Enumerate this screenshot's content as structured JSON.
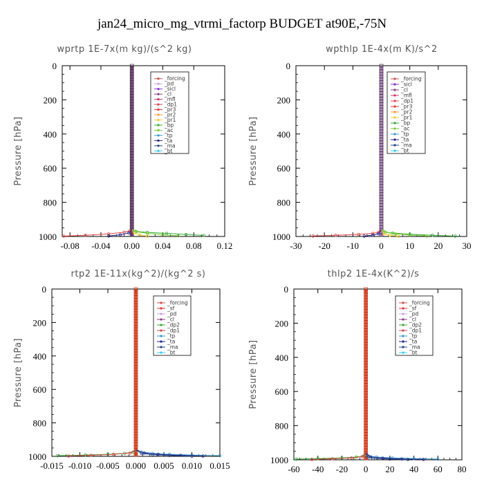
{
  "title": "jan24_micro_mg_vtrmi_factorp  BUDGET at90E,-75N",
  "colors": {
    "_forcing": "#d04c4c",
    "_pd": "#c9a0dc",
    "_sicl": "#8a2be2",
    "_cl": "#8b3a8b",
    "_mfl": "#cc3366",
    "_dp1": "#dd4444",
    "_pr3": "#ee3333",
    "_pr2": "#ff9933",
    "_pr1": "#eecc33",
    "_bp": "#33aa33",
    "_ac": "#77cc33",
    "_tp": "#3399cc",
    "_ta": "#222288",
    "_ma": "#224488",
    "_bt": "#33ccee",
    "_sf": "#ee3333",
    "_dp2": "#33aa33"
  },
  "chart_data": [
    {
      "type": "line",
      "title": "wprtp  1E-7x(m kg)/(s^2 kg)",
      "ylabel": "Pressure [hPa]",
      "xlim": [
        -0.09,
        0.12
      ],
      "ylim": [
        1000,
        0
      ],
      "xticks": [
        "-0.08",
        "-0.04",
        "0.00",
        "0.04",
        "0.08",
        "0.12"
      ],
      "xtick_values": [
        -0.08,
        -0.04,
        0.0,
        0.04,
        0.08,
        0.12
      ],
      "yticks": [
        "0",
        "200",
        "400",
        "600",
        "800",
        "1000"
      ],
      "ytick_values": [
        0,
        200,
        400,
        600,
        800,
        1000
      ],
      "legend": [
        "_forcing",
        "_pd",
        "_sicl",
        "_cl",
        "_mfl",
        "_dp1",
        "_pr3",
        "_pr2",
        "_pr1",
        "_bp",
        "_ac",
        "_tp",
        "_ta",
        "_ma",
        "_bt"
      ],
      "stack_color": "#6a2c70",
      "series": [
        {
          "key": "_dp1",
          "x": [
            -0.088,
            -0.06,
            -0.03,
            -0.01,
            -0.003
          ],
          "y": [
            998,
            993,
            985,
            975,
            968
          ]
        },
        {
          "key": "_bp",
          "x": [
            0.093,
            0.07,
            0.045,
            0.02,
            0.005
          ],
          "y": [
            994,
            988,
            982,
            976,
            970
          ]
        },
        {
          "key": "_ac",
          "x": [
            0.06,
            0.04,
            0.02,
            0.006
          ],
          "y": [
            996,
            990,
            982,
            972
          ]
        },
        {
          "key": "_pr1",
          "x": [
            0.02,
            0.01,
            0.003
          ],
          "y": [
            999,
            990,
            980
          ]
        },
        {
          "key": "_ta",
          "x": [
            -0.03,
            -0.015,
            -0.004
          ],
          "y": [
            997,
            990,
            980
          ]
        }
      ]
    },
    {
      "type": "line",
      "title": "wpthlp  1E-4x(m K)/s^2",
      "ylabel": "Pressure [hPa]",
      "xlim": [
        -30,
        30
      ],
      "ylim": [
        1000,
        0
      ],
      "xticks": [
        "-30",
        "-20",
        "-10",
        "0",
        "10",
        "20",
        "30"
      ],
      "xtick_values": [
        -30,
        -20,
        -10,
        0,
        10,
        20,
        30
      ],
      "yticks": [
        "0",
        "200",
        "400",
        "600",
        "800",
        "1000"
      ],
      "ytick_values": [
        0,
        200,
        400,
        600,
        800,
        1000
      ],
      "legend": [
        "_forcing",
        "_sicl",
        "_cl",
        "_mfl",
        "_dp1",
        "_pr3",
        "_pr2",
        "_pr1",
        "_bp",
        "_ac",
        "_tp",
        "_ta",
        "_ma",
        "_bt"
      ],
      "stack_color": "#b070c0",
      "series": [
        {
          "key": "_dp1",
          "x": [
            -24,
            -16,
            -8,
            -3,
            -1
          ],
          "y": [
            997,
            993,
            988,
            982,
            975
          ]
        },
        {
          "key": "_bp",
          "x": [
            26,
            18,
            10,
            4,
            1
          ],
          "y": [
            998,
            993,
            987,
            980,
            973
          ]
        },
        {
          "key": "_ac",
          "x": [
            16,
            10,
            5,
            1.5
          ],
          "y": [
            997,
            992,
            985,
            976
          ]
        },
        {
          "key": "_pr1",
          "x": [
            6,
            3,
            1
          ],
          "y": [
            999,
            993,
            985
          ]
        },
        {
          "key": "_ta",
          "x": [
            -6,
            -3,
            -1
          ],
          "y": [
            998,
            992,
            984
          ]
        }
      ]
    },
    {
      "type": "line",
      "title": "rtp2  1E-11x(kg^2)/(kg^2 s)",
      "ylabel": "Pressure [hPa]",
      "xlim": [
        -0.015,
        0.015
      ],
      "ylim": [
        1000,
        0
      ],
      "xticks": [
        "-0.015",
        "-0.010",
        "-0.005",
        "0.000",
        "0.005",
        "0.010",
        "0.015"
      ],
      "xtick_values": [
        -0.015,
        -0.01,
        -0.005,
        0.0,
        0.005,
        0.01,
        0.015
      ],
      "yticks": [
        "0",
        "200",
        "400",
        "600",
        "800",
        "1000"
      ],
      "ytick_values": [
        0,
        200,
        400,
        600,
        800,
        1000
      ],
      "legend": [
        "_forcing",
        "_sf",
        "_pd",
        "_cl",
        "_dp2",
        "_dp1",
        "_tp",
        "_ta",
        "_ma",
        "_bt"
      ],
      "stack_color": "#d04020",
      "series": [
        {
          "key": "_dp2",
          "x": [
            -0.014,
            -0.009,
            -0.005,
            -0.002,
            -0.0005
          ],
          "y": [
            996,
            992,
            988,
            982,
            975
          ]
        },
        {
          "key": "_dp1",
          "x": [
            -0.012,
            -0.008,
            -0.004,
            -0.001
          ],
          "y": [
            998,
            994,
            988,
            980
          ]
        },
        {
          "key": "_tp",
          "x": [
            0.015,
            0.01,
            0.006,
            0.003,
            0.001
          ],
          "y": [
            996,
            992,
            988,
            982,
            974
          ]
        },
        {
          "key": "_ta",
          "x": [
            0.012,
            0.008,
            0.004,
            0.0015
          ],
          "y": [
            998,
            994,
            988,
            980
          ]
        },
        {
          "key": "_ma",
          "x": [
            0.01,
            0.006,
            0.003,
            0.001
          ],
          "y": [
            999,
            995,
            990,
            983
          ]
        }
      ]
    },
    {
      "type": "line",
      "title": "thlp2  1E-4x(K^2)/s",
      "ylabel": "Pressure [hPa]",
      "xlim": [
        -60,
        80
      ],
      "ylim": [
        1000,
        0
      ],
      "xticks": [
        "-60",
        "-40",
        "-20",
        "0",
        "20",
        "40",
        "60",
        "80"
      ],
      "xtick_values": [
        -60,
        -40,
        -20,
        0,
        20,
        40,
        60,
        80
      ],
      "yticks": [
        "0",
        "200",
        "400",
        "600",
        "800",
        "1000"
      ],
      "ytick_values": [
        0,
        200,
        400,
        600,
        800,
        1000
      ],
      "legend": [
        "_forcing",
        "_sf",
        "_pd",
        "_cl",
        "_dp2",
        "_dp1",
        "_tp",
        "_ta",
        "_ma",
        "_bt"
      ],
      "stack_color": "#d04020",
      "series": [
        {
          "key": "_dp2",
          "x": [
            -58,
            -40,
            -20,
            -8,
            -2
          ],
          "y": [
            996,
            993,
            989,
            984,
            978
          ]
        },
        {
          "key": "_dp1",
          "x": [
            -45,
            -28,
            -12,
            -3
          ],
          "y": [
            998,
            994,
            989,
            982
          ]
        },
        {
          "key": "_tp",
          "x": [
            60,
            40,
            22,
            9,
            2
          ],
          "y": [
            996,
            993,
            989,
            984,
            978
          ]
        },
        {
          "key": "_ta",
          "x": [
            48,
            30,
            14,
            4
          ],
          "y": [
            998,
            995,
            990,
            983
          ]
        },
        {
          "key": "_ma",
          "x": [
            35,
            20,
            8,
            2
          ],
          "y": [
            999,
            996,
            992,
            986
          ]
        }
      ]
    }
  ]
}
